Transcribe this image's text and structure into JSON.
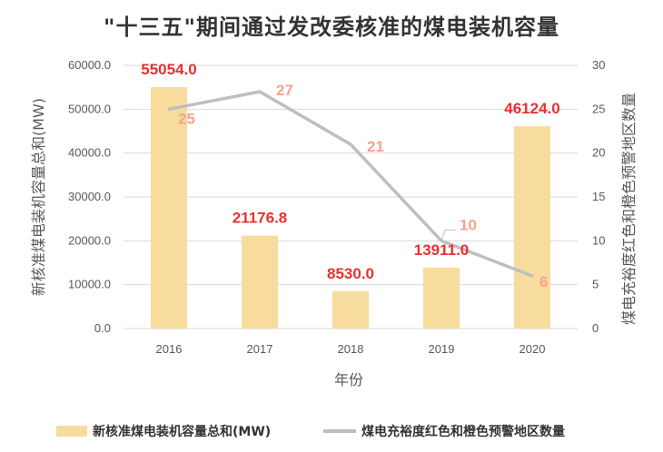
{
  "chart_data": {
    "type": "bar+line",
    "title": "\"十三五\"期间通过发改委核准的煤电装机容量",
    "categories": [
      "2016",
      "2017",
      "2018",
      "2019",
      "2020"
    ],
    "xlabel": "年份",
    "ylabel_left": "新核准煤电装机容量总和(MW)",
    "ylabel_right": "煤电充裕度红色和橙色预警地区数量",
    "ylim_left": [
      0,
      60000
    ],
    "ylim_right": [
      0,
      30
    ],
    "yticks_left": [
      "0.0",
      "10000.0",
      "20000.0",
      "30000.0",
      "40000.0",
      "50000.0",
      "60000.0"
    ],
    "yticks_right": [
      "0",
      "5",
      "10",
      "15",
      "20",
      "25",
      "30"
    ],
    "series": [
      {
        "name": "新核准煤电装机容量总和(MW)",
        "type": "bar",
        "axis": "left",
        "color": "#f8dc9e",
        "values": [
          55054.0,
          21176.8,
          8530.0,
          13911.0,
          46124.0
        ],
        "labels": [
          "55054.0",
          "21176.8",
          "8530.0",
          "13911.0",
          "46124.0"
        ]
      },
      {
        "name": "煤电充裕度红色和橙色预警地区数量",
        "type": "line",
        "axis": "right",
        "color": "#bfbfbf",
        "values": [
          25,
          27,
          21,
          10,
          6
        ],
        "labels": [
          "25",
          "27",
          "21",
          "10",
          "6"
        ]
      }
    ],
    "bar_label_color": "#e8312f",
    "line_label_color": "#f4a48f",
    "legend": [
      "新核准煤电装机容量总和(MW)",
      "煤电充裕度红色和橙色预警地区数量"
    ]
  }
}
